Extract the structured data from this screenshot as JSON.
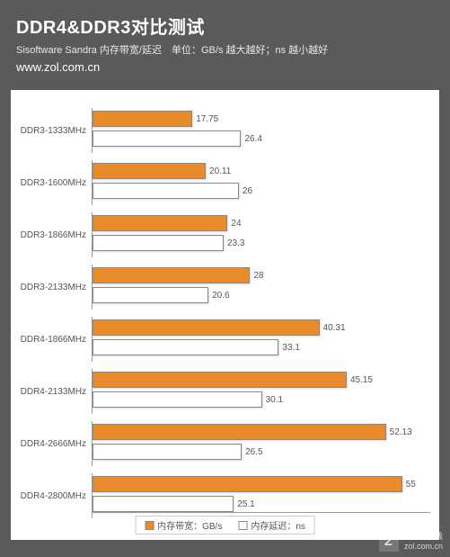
{
  "header": {
    "title": "DDR4&DDR3对比测试",
    "subtitle": "Sisoftware Sandra 内存带宽/延迟　单位：GB/s 越大越好；ns 越小越好",
    "url": "www.zol.com.cn"
  },
  "chart": {
    "type": "bar",
    "orientation": "horizontal",
    "background_color": "#5a5a5a",
    "plot_bg": "#ffffff",
    "max_value": 60,
    "categories": [
      "DDR3-1333MHz",
      "DDR3-1600MHz",
      "DDR3-1866MHz",
      "DDR3-2133MHz",
      "DDR4-1866MHz",
      "DDR4-2133MHz",
      "DDR4-2666MHz",
      "DDR4-2800MHz"
    ],
    "series": [
      {
        "name": "内存带宽：GB/s",
        "color": "#e98b2a",
        "values": [
          17.75,
          20.11,
          24,
          28,
          40.31,
          45.15,
          52.13,
          55
        ]
      },
      {
        "name": "内存延迟：ns",
        "color": "#ffffff",
        "values": [
          26.4,
          26,
          23.3,
          20.6,
          33.1,
          30.1,
          26.5,
          25.1
        ]
      }
    ],
    "label_fontsize": 10,
    "value_fontsize": 10,
    "bar_border_color": "#888888",
    "axis_color": "#999999"
  },
  "watermark": {
    "line1": "中关村在线",
    "line2": "zol.com.cn",
    "glyph": "Z"
  }
}
